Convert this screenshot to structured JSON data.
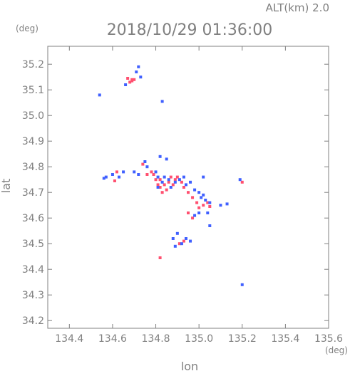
{
  "header": {
    "altitude_label": "ALT(km) 2.0",
    "timestamp": "2018/10/29 01:36:00",
    "y_unit": "(deg)",
    "x_unit": "(deg)"
  },
  "chart_data": {
    "type": "scatter",
    "title": "2018/10/29 01:36:00",
    "subtitle": "ALT(km) 2.0",
    "xlabel": "lon",
    "ylabel": "lat",
    "xlim": [
      134.3,
      135.6
    ],
    "ylim": [
      34.17,
      35.27
    ],
    "xticks": [
      "134.4",
      "134.6",
      "134.8",
      "135.0",
      "135.2",
      "135.4",
      "135.6"
    ],
    "yticks": [
      "34.2",
      "34.3",
      "34.4",
      "34.5",
      "34.6",
      "34.7",
      "34.8",
      "34.9",
      "35.0",
      "35.1",
      "35.2"
    ],
    "grid": false,
    "colors": {
      "positive": "#ff5070",
      "negative": "#4060ff",
      "axis": "#808080"
    },
    "series": [
      {
        "color": "positive",
        "points": [
          [
            134.69,
            35.14
          ],
          [
            134.68,
            35.13
          ],
          [
            134.7,
            35.14
          ],
          [
            134.67,
            35.145
          ],
          [
            134.69,
            35.135
          ],
          [
            134.62,
            34.78
          ],
          [
            134.61,
            34.745
          ],
          [
            134.74,
            34.81
          ],
          [
            134.78,
            34.78
          ],
          [
            134.79,
            34.77
          ],
          [
            134.8,
            34.75
          ],
          [
            134.81,
            34.73
          ],
          [
            134.82,
            34.75
          ],
          [
            134.84,
            34.73
          ],
          [
            134.85,
            34.71
          ],
          [
            134.86,
            34.74
          ],
          [
            134.88,
            34.73
          ],
          [
            134.89,
            34.75
          ],
          [
            134.9,
            34.76
          ],
          [
            134.92,
            34.74
          ],
          [
            134.93,
            34.72
          ],
          [
            134.95,
            34.7
          ],
          [
            134.97,
            34.68
          ],
          [
            134.99,
            34.66
          ],
          [
            135.0,
            34.64
          ],
          [
            135.02,
            34.65
          ],
          [
            135.04,
            34.66
          ],
          [
            135.05,
            34.645
          ],
          [
            134.95,
            34.62
          ],
          [
            134.97,
            34.6
          ],
          [
            134.83,
            34.7
          ],
          [
            134.82,
            34.72
          ],
          [
            134.87,
            34.76
          ],
          [
            134.82,
            34.445
          ],
          [
            135.2,
            34.74
          ],
          [
            134.76,
            34.77
          ],
          [
            134.91,
            34.5
          ],
          [
            134.93,
            34.51
          ]
        ]
      },
      {
        "color": "negative",
        "points": [
          [
            134.72,
            35.19
          ],
          [
            134.71,
            35.17
          ],
          [
            134.73,
            35.15
          ],
          [
            134.66,
            35.12
          ],
          [
            134.54,
            35.08
          ],
          [
            134.83,
            35.055
          ],
          [
            134.57,
            34.76
          ],
          [
            134.56,
            34.755
          ],
          [
            134.6,
            34.77
          ],
          [
            134.63,
            34.76
          ],
          [
            134.65,
            34.78
          ],
          [
            134.7,
            34.78
          ],
          [
            134.72,
            34.77
          ],
          [
            134.75,
            34.82
          ],
          [
            134.76,
            34.8
          ],
          [
            134.8,
            34.78
          ],
          [
            134.81,
            34.76
          ],
          [
            134.83,
            34.74
          ],
          [
            134.84,
            34.76
          ],
          [
            134.86,
            34.75
          ],
          [
            134.87,
            34.72
          ],
          [
            134.89,
            34.74
          ],
          [
            134.91,
            34.75
          ],
          [
            134.93,
            34.76
          ],
          [
            134.94,
            34.73
          ],
          [
            134.96,
            34.74
          ],
          [
            134.98,
            34.71
          ],
          [
            135.0,
            34.7
          ],
          [
            135.01,
            34.68
          ],
          [
            135.02,
            34.69
          ],
          [
            135.03,
            34.67
          ],
          [
            135.05,
            34.66
          ],
          [
            135.04,
            34.62
          ],
          [
            135.0,
            34.62
          ],
          [
            134.98,
            34.61
          ],
          [
            135.05,
            34.57
          ],
          [
            135.1,
            34.65
          ],
          [
            135.13,
            34.655
          ],
          [
            135.02,
            34.76
          ],
          [
            134.88,
            34.52
          ],
          [
            134.89,
            34.49
          ],
          [
            134.92,
            34.5
          ],
          [
            134.94,
            34.52
          ],
          [
            134.96,
            34.51
          ],
          [
            134.9,
            34.54
          ],
          [
            135.2,
            34.34
          ],
          [
            135.19,
            34.75
          ],
          [
            134.82,
            34.84
          ],
          [
            134.85,
            34.83
          ],
          [
            134.81,
            34.72
          ]
        ]
      }
    ]
  }
}
